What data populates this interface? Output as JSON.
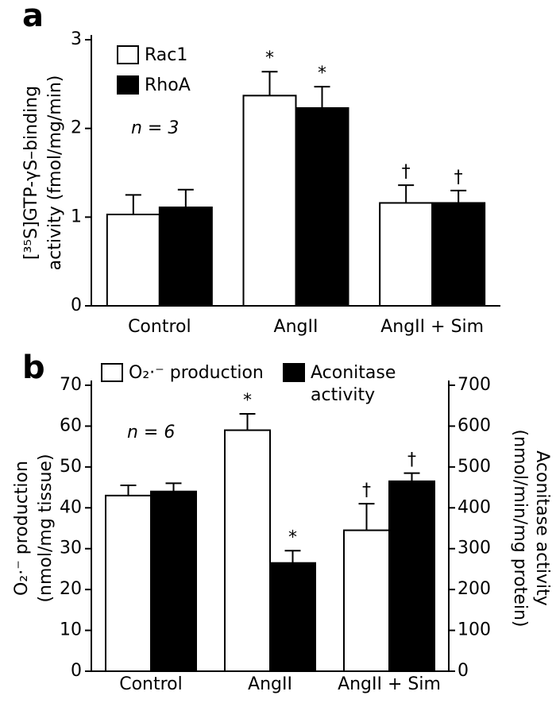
{
  "chart_data": [
    {
      "type": "bar",
      "panel_label": "a",
      "note": "n = 3",
      "categories": [
        "Control",
        "AngII",
        "AngII + Sim"
      ],
      "series": [
        {
          "name": "Rac1",
          "color": "#ffffff",
          "values": [
            1.03,
            2.37,
            1.16
          ],
          "errors": [
            0.22,
            0.27,
            0.2
          ],
          "markers": [
            null,
            "*",
            "†"
          ]
        },
        {
          "name": "RhoA",
          "color": "#000000",
          "values": [
            1.11,
            2.23,
            1.16
          ],
          "errors": [
            0.2,
            0.24,
            0.14
          ],
          "markers": [
            null,
            "*",
            "†"
          ]
        }
      ],
      "ylim": [
        0,
        3
      ],
      "yticks": [
        0,
        1,
        2,
        3
      ],
      "ylabel": [
        "[³⁵S]GTP-γS–binding",
        "activity (fmol/mg/min)"
      ]
    },
    {
      "type": "bar",
      "panel_label": "b",
      "note": "n = 6",
      "categories": [
        "Control",
        "AngII",
        "AngII + Sim"
      ],
      "series": [
        {
          "name": "O₂·⁻ production",
          "color": "#ffffff",
          "values": [
            43,
            59,
            34.5
          ],
          "errors": [
            2.5,
            4,
            6.5
          ],
          "markers": [
            null,
            "*",
            "†"
          ]
        },
        {
          "name": "Aconitase activity",
          "color": "#000000",
          "axis": "y2",
          "values": [
            440,
            265,
            465
          ],
          "errors": [
            20,
            30,
            20
          ],
          "markers": [
            null,
            "*",
            "†"
          ]
        }
      ],
      "ylim": [
        0,
        70
      ],
      "yticks": [
        0,
        10,
        20,
        30,
        40,
        50,
        60,
        70
      ],
      "y2lim": [
        0,
        700
      ],
      "y2ticks": [
        0,
        100,
        200,
        300,
        400,
        500,
        600,
        700
      ],
      "ylabel": [
        "O₂·⁻ production",
        "(nmol/mg tissue)"
      ],
      "y2label": [
        "Aconitase activity",
        "(nmol/min/mg protein)"
      ]
    }
  ]
}
